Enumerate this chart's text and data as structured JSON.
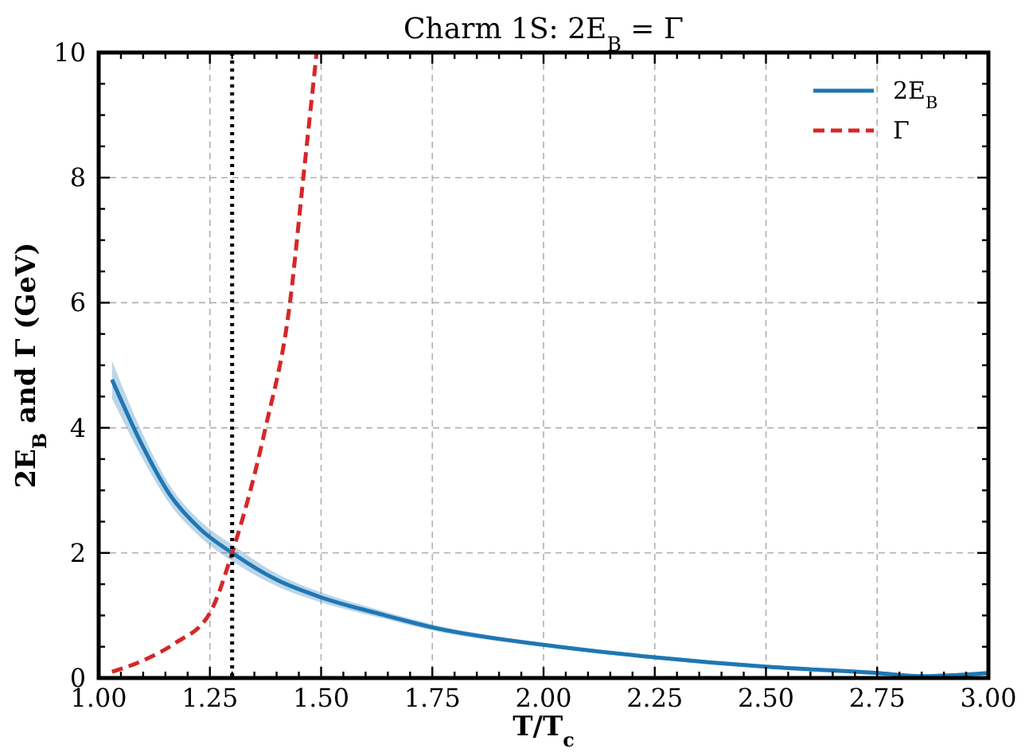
{
  "chart_data": {
    "type": "line",
    "title": "Charm 1S: 2E$_{B}$ = Γ",
    "xlabel": "T/T$_{c}$",
    "ylabel": "2E$_{B}$ and Γ (GeV)",
    "xlim": [
      1.0,
      3.0
    ],
    "ylim": [
      0,
      10
    ],
    "xticks": [
      {
        "value": 1.0,
        "label": "1.00"
      },
      {
        "value": 1.05,
        "label": null
      },
      {
        "value": 1.1,
        "label": null
      },
      {
        "value": 1.15,
        "label": null
      },
      {
        "value": 1.2,
        "label": null
      },
      {
        "value": 1.25,
        "label": "1.25"
      },
      {
        "value": 1.3,
        "label": null
      },
      {
        "value": 1.35,
        "label": null
      },
      {
        "value": 1.4,
        "label": null
      },
      {
        "value": 1.45,
        "label": null
      },
      {
        "value": 1.5,
        "label": "1.50"
      },
      {
        "value": 1.55,
        "label": null
      },
      {
        "value": 1.6,
        "label": null
      },
      {
        "value": 1.65,
        "label": null
      },
      {
        "value": 1.7,
        "label": null
      },
      {
        "value": 1.75,
        "label": "1.75"
      },
      {
        "value": 1.8,
        "label": null
      },
      {
        "value": 1.85,
        "label": null
      },
      {
        "value": 1.9,
        "label": null
      },
      {
        "value": 1.95,
        "label": null
      },
      {
        "value": 2.0,
        "label": "2.00"
      },
      {
        "value": 2.05,
        "label": null
      },
      {
        "value": 2.1,
        "label": null
      },
      {
        "value": 2.15,
        "label": null
      },
      {
        "value": 2.2,
        "label": null
      },
      {
        "value": 2.25,
        "label": "2.25"
      },
      {
        "value": 2.3,
        "label": null
      },
      {
        "value": 2.35,
        "label": null
      },
      {
        "value": 2.4,
        "label": null
      },
      {
        "value": 2.45,
        "label": null
      },
      {
        "value": 2.5,
        "label": "2.50"
      },
      {
        "value": 2.55,
        "label": null
      },
      {
        "value": 2.6,
        "label": null
      },
      {
        "value": 2.65,
        "label": null
      },
      {
        "value": 2.7,
        "label": null
      },
      {
        "value": 2.75,
        "label": "2.75"
      },
      {
        "value": 2.8,
        "label": null
      },
      {
        "value": 2.85,
        "label": null
      },
      {
        "value": 2.9,
        "label": null
      },
      {
        "value": 2.95,
        "label": null
      },
      {
        "value": 3.0,
        "label": "3.00"
      }
    ],
    "yticks": [
      0,
      {
        "value": 0.5,
        "label": null
      },
      2,
      {
        "value": 1,
        "label": null
      },
      {
        "value": 1.5,
        "label": null
      },
      {
        "value": 2.5,
        "label": null
      },
      {
        "value": 3,
        "label": null
      },
      {
        "value": 3.5,
        "label": null
      },
      4,
      {
        "value": 4.5,
        "label": null
      },
      {
        "value": 5,
        "label": null
      },
      {
        "value": 5.5,
        "label": null
      },
      6,
      {
        "value": 6.5,
        "label": null
      },
      {
        "value": 7,
        "label": null
      },
      {
        "value": 7.5,
        "label": null
      },
      8,
      {
        "value": 8.5,
        "label": null
      },
      {
        "value": 9,
        "label": null
      },
      {
        "value": 9.5,
        "label": null
      },
      10
    ],
    "grid": true,
    "legend": "top right",
    "ref_lines": [
      {
        "axis": "x",
        "value": 1.3,
        "color": "#000000",
        "line_style": "dotted"
      }
    ],
    "series": [
      {
        "name": "2E$_{B}$",
        "color": "#1f77b4",
        "line_style": "solid",
        "x": [
          1.03,
          1.1,
          1.16,
          1.23,
          1.3,
          1.4,
          1.5,
          1.64,
          1.75,
          2.0,
          2.25,
          2.5,
          2.75,
          2.85,
          3.0
        ],
        "values": [
          4.77,
          3.69,
          2.93,
          2.37,
          2.0,
          1.57,
          1.29,
          1.01,
          0.81,
          0.53,
          0.33,
          0.18,
          0.08,
          0.03,
          0.08
        ],
        "lower": [
          4.47,
          3.49,
          2.78,
          2.24,
          1.87,
          1.47,
          1.21,
          0.95,
          0.76,
          0.5,
          0.3,
          0.15,
          0.05,
          0.0,
          0.05
        ],
        "upper": [
          5.07,
          3.89,
          3.08,
          2.5,
          2.13,
          1.67,
          1.37,
          1.07,
          0.86,
          0.56,
          0.36,
          0.21,
          0.11,
          0.06,
          0.11
        ]
      },
      {
        "name": "Γ",
        "color": "#d62728",
        "line_style": "dashed",
        "x": [
          1.03,
          1.1,
          1.17,
          1.25,
          1.3,
          1.375,
          1.43,
          1.46,
          1.49
        ],
        "values": [
          0.1,
          0.28,
          0.55,
          1.04,
          2.0,
          4.0,
          6.0,
          8.0,
          10.0
        ]
      }
    ]
  }
}
